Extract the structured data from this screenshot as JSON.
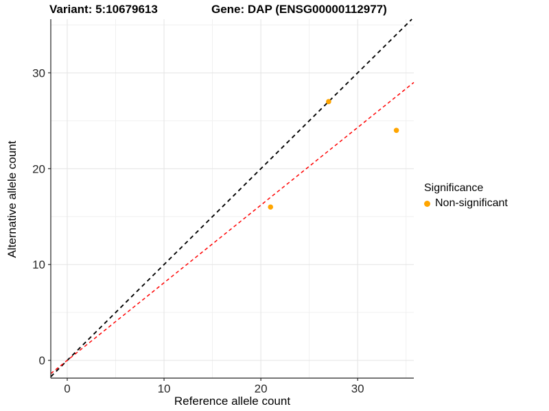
{
  "chart_data": {
    "type": "scatter",
    "title_left": "Variant: 5:10679613",
    "title_right": "Gene: DAP (ENSG00000112977)",
    "xlabel": "Reference allele count",
    "ylabel": "Alternative allele count",
    "xlim": [
      -1.7,
      35.8
    ],
    "ylim": [
      -1.85,
      35.6
    ],
    "x_ticks": [
      0,
      10,
      20,
      30
    ],
    "y_ticks": [
      0,
      10,
      20,
      30
    ],
    "x_minor_ticks": [
      5,
      15,
      25,
      35
    ],
    "y_minor_ticks": [
      5,
      15,
      25,
      35
    ],
    "grid": {
      "on": true,
      "major_color": "#e3e3e3",
      "minor_color": "#f0f0f0"
    },
    "series": [
      {
        "name": "Non-significant",
        "color": "#FFA500",
        "points": [
          {
            "x": 27,
            "y": 27
          },
          {
            "x": 34,
            "y": 24
          },
          {
            "x": 21,
            "y": 16
          }
        ]
      }
    ],
    "lines": [
      {
        "name": "identity-line",
        "slope": 1,
        "intercept": 0,
        "color": "#000000",
        "dash": "6 5",
        "width": 1.9
      },
      {
        "name": "fit-line",
        "slope": 0.81,
        "intercept": 0,
        "color": "#ff0000",
        "dash": "5 4",
        "width": 1.5
      }
    ],
    "legend": {
      "position": "right",
      "title": "Significance",
      "items": [
        {
          "label": "Non-significant",
          "color": "#FFA500"
        }
      ]
    },
    "axis_color": "#222222",
    "tick_label_color": "#262626",
    "point_radius": 3.8
  }
}
